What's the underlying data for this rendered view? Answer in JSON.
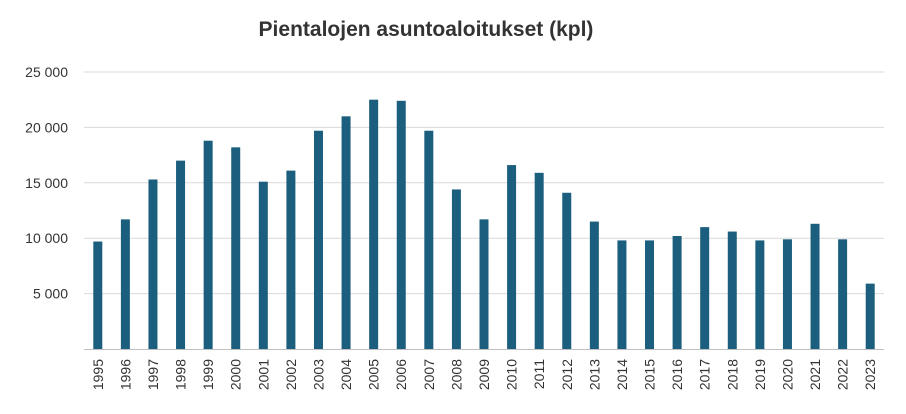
{
  "chart_data": {
    "type": "bar",
    "title": "Pientalojen asuntoaloitukset (kpl)",
    "xlabel": "",
    "ylabel": "",
    "categories": [
      "1995",
      "1996",
      "1997",
      "1998",
      "1999",
      "2000",
      "2001",
      "2002",
      "2003",
      "2004",
      "2005",
      "2006",
      "2007",
      "2008",
      "2009",
      "2010",
      "2011",
      "2012",
      "2013",
      "2014",
      "2015",
      "2016",
      "2017",
      "2018",
      "2019",
      "2020",
      "2021",
      "2022",
      "2023"
    ],
    "values": [
      9700,
      11700,
      15300,
      17000,
      18800,
      18200,
      15100,
      16100,
      19700,
      21000,
      22500,
      22400,
      19700,
      14400,
      11700,
      16600,
      15900,
      14100,
      11500,
      9800,
      9800,
      10200,
      11000,
      10600,
      9800,
      9900,
      11300,
      9900,
      5900
    ],
    "ylim": [
      0,
      25000
    ],
    "yticks": [
      5000,
      10000,
      15000,
      20000,
      25000
    ],
    "ytick_labels": [
      "5 000",
      "10 000",
      "15 000",
      "20 000",
      "25 000"
    ],
    "grid": true,
    "bar_color": "#1b5e7e"
  }
}
